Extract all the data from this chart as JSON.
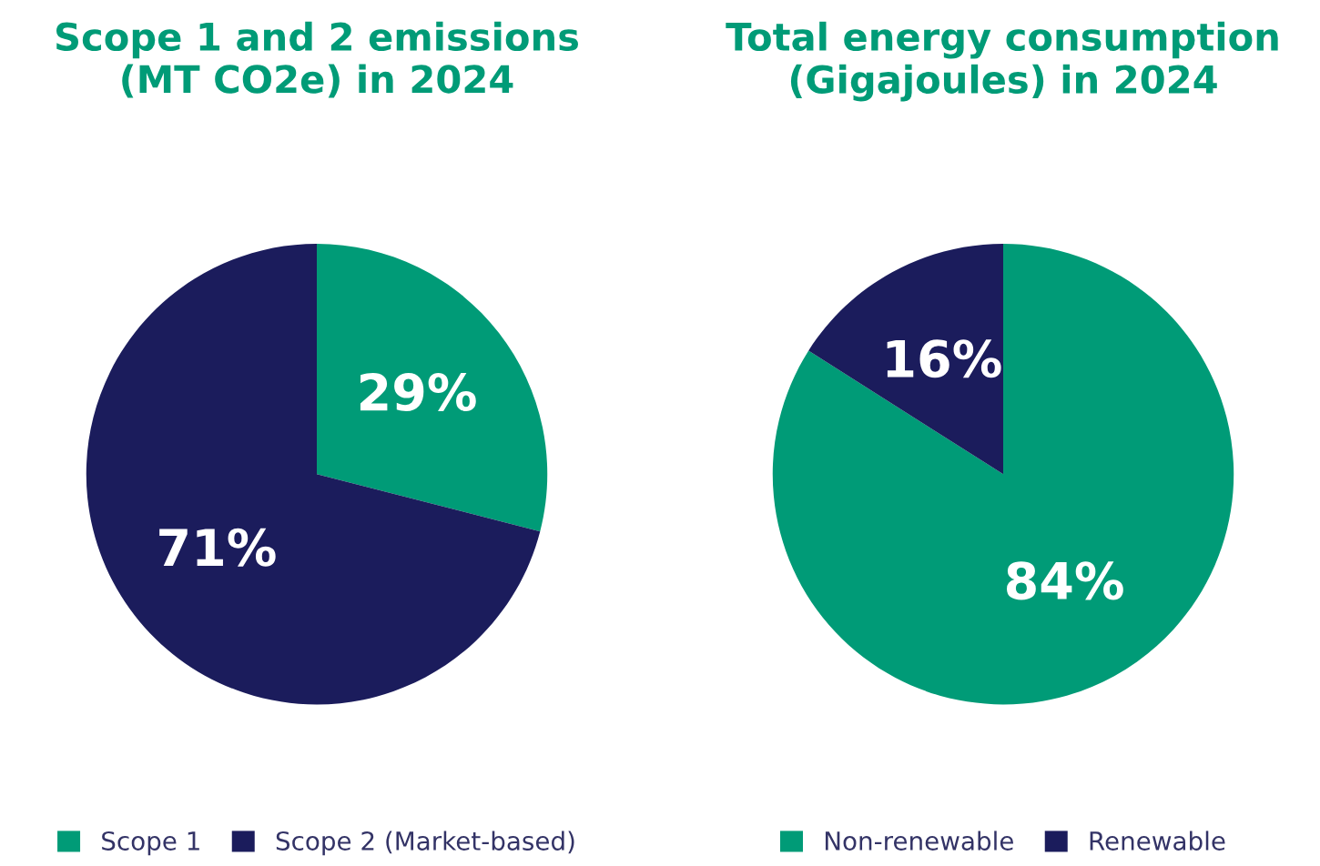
{
  "chart_data": [
    {
      "type": "pie",
      "title": "Scope 1 and 2 emissions\n(MT CO2e) in 2024",
      "categories": [
        "Scope 1",
        "Scope 2 (Market-based)"
      ],
      "values": [
        29,
        71
      ],
      "colors": [
        "#009b77",
        "#1b1c5c"
      ],
      "value_labels": [
        "29%",
        "71%"
      ],
      "legend": "bottom"
    },
    {
      "type": "pie",
      "title": "Total energy consumption\n(Gigajoules) in 2024",
      "categories": [
        "Non-renewable",
        "Renewable"
      ],
      "values": [
        84,
        16
      ],
      "colors": [
        "#009b77",
        "#1b1c5c"
      ],
      "value_labels": [
        "84%",
        "16%"
      ],
      "legend": "bottom"
    }
  ]
}
